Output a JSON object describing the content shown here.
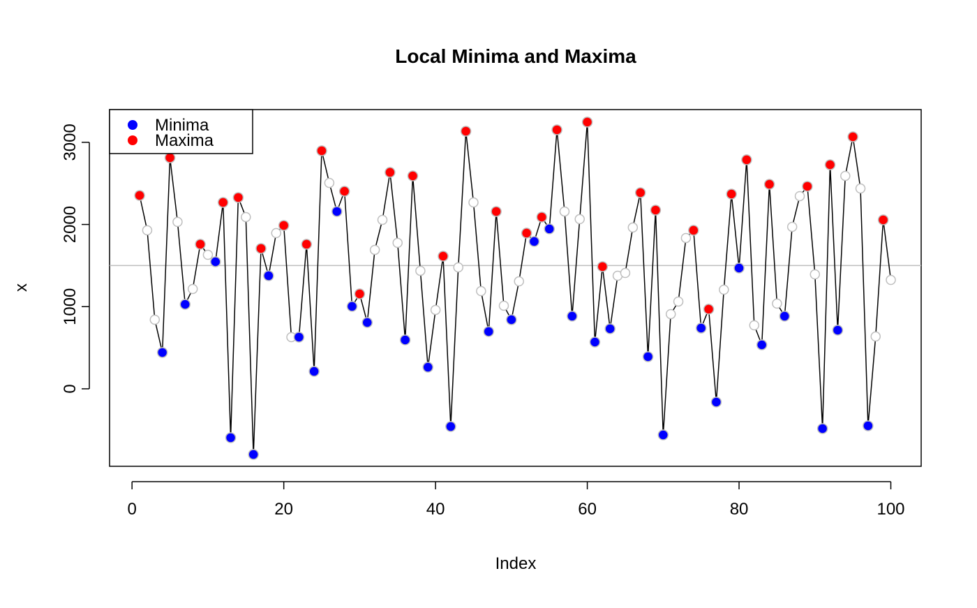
{
  "chart_data": {
    "type": "line",
    "title": "Local Minima and Maxima",
    "x_label": "Index",
    "y_label": "x",
    "x": [
      1,
      2,
      3,
      4,
      5,
      6,
      7,
      8,
      9,
      10,
      11,
      12,
      13,
      14,
      15,
      16,
      17,
      18,
      19,
      20,
      21,
      22,
      23,
      24,
      25,
      26,
      27,
      28,
      29,
      30,
      31,
      32,
      33,
      34,
      35,
      36,
      37,
      38,
      39,
      40,
      41,
      42,
      43,
      44,
      45,
      46,
      47,
      48,
      49,
      50,
      51,
      52,
      53,
      54,
      55,
      56,
      57,
      58,
      59,
      60,
      61,
      62,
      63,
      64,
      65,
      66,
      67,
      68,
      69,
      70,
      71,
      72,
      73,
      74,
      75,
      76,
      77,
      78,
      79,
      80,
      81,
      82,
      83,
      84,
      85,
      86,
      87,
      88,
      89,
      90,
      91,
      92,
      93,
      94,
      95,
      96,
      97,
      98,
      99,
      100
    ],
    "values": [
      2353,
      1929,
      841,
      442,
      2812,
      2031,
      1028,
      1215,
      1759,
      1631,
      1546,
      2268,
      -595,
      2328,
      2090,
      -799,
      1708,
      1376,
      1895,
      1988,
      629,
      629,
      1759,
      212,
      2897,
      2506,
      2158,
      2404,
      1003,
      1155,
      807,
      1691,
      2056,
      2634,
      1776,
      595,
      2591,
      1436,
      263,
      960,
      1614,
      -459,
      1478,
      3135,
      2268,
      1189,
      697,
      2158,
      1011,
      841,
      1308,
      1895,
      1793,
      2090,
      1946,
      3152,
      2158,
      884,
      2065,
      3246,
      569,
      1487,
      731,
      1376,
      1410,
      1963,
      2387,
      391,
      2175,
      -561,
      909,
      1062,
      1835,
      1929,
      739,
      969,
      -161,
      1206,
      2370,
      1470,
      2787,
      773,
      535,
      2489,
      1037,
      884,
      1971,
      2345,
      2464,
      1393,
      -484,
      2727,
      714,
      2591,
      3067,
      2438,
      -450,
      637,
      2056,
      1325
    ],
    "line_color": "#000000",
    "point_color": "#bebebe",
    "series": [
      {
        "name": "Minima",
        "color": "#0000ff",
        "points": [
          4,
          7,
          11,
          13,
          16,
          18,
          22,
          24,
          27,
          29,
          31,
          36,
          39,
          42,
          47,
          50,
          53,
          55,
          58,
          61,
          63,
          68,
          70,
          75,
          77,
          80,
          83,
          86,
          91,
          93,
          97
        ]
      },
      {
        "name": "Maxima",
        "color": "#ff0000",
        "points": [
          1,
          5,
          9,
          12,
          14,
          17,
          20,
          23,
          25,
          28,
          30,
          34,
          37,
          41,
          44,
          48,
          52,
          54,
          56,
          60,
          62,
          67,
          69,
          74,
          76,
          79,
          81,
          84,
          89,
          92,
          95,
          99
        ]
      }
    ],
    "hline": 1500,
    "hline_color": "#bebebe",
    "xlim": [
      -2.96,
      104
    ],
    "ylim": [
      -943,
      3398
    ],
    "xticks": [
      0,
      20,
      40,
      60,
      80,
      100
    ],
    "yticks": [
      0,
      1000,
      2000,
      3000
    ],
    "legend": "top-left"
  }
}
